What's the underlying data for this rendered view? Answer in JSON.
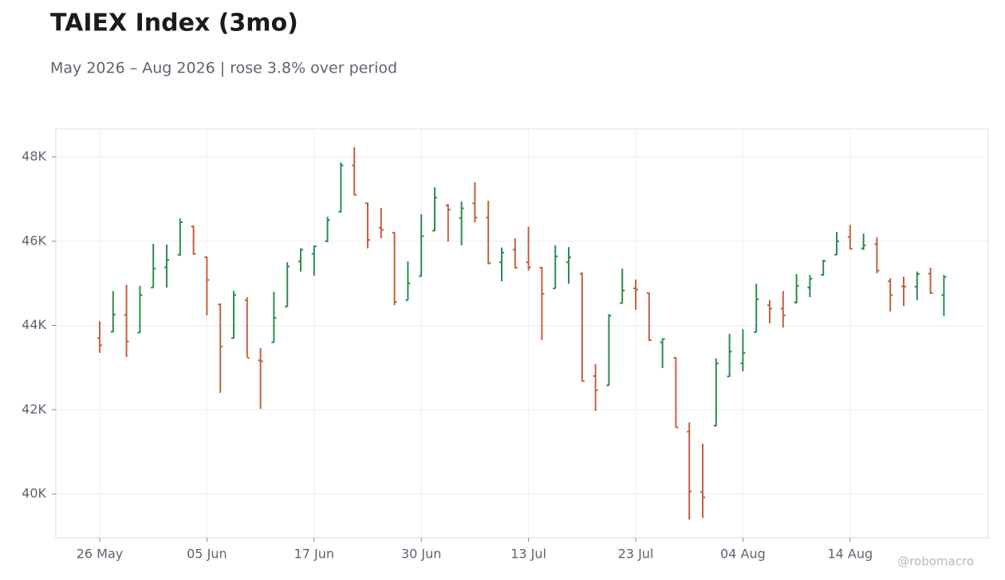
{
  "chart_data": {
    "type": "ohlc",
    "title": "TAIEX Index (3mo)",
    "subtitle": "May 2026 – Aug 2026 | rose 3.8% over period",
    "credit": "@robomacro",
    "up_color": "#2e8a50",
    "down_color": "#c4603f",
    "grid": true,
    "ylim": [
      38960,
      48662
    ],
    "yticks": [
      {
        "value": 40000,
        "label": "40K"
      },
      {
        "value": 42000,
        "label": "42K"
      },
      {
        "value": 44000,
        "label": "44K"
      },
      {
        "value": 46000,
        "label": "46K"
      },
      {
        "value": 48000,
        "label": "48K"
      }
    ],
    "categories": [
      "26 May",
      null,
      null,
      null,
      null,
      null,
      null,
      null,
      "05 Jun",
      null,
      null,
      null,
      null,
      null,
      null,
      null,
      "17 Jun",
      null,
      null,
      null,
      null,
      null,
      null,
      null,
      "30 Jun",
      null,
      null,
      null,
      null,
      null,
      null,
      null,
      "13 Jul",
      null,
      null,
      null,
      null,
      null,
      null,
      null,
      "23 Jul",
      null,
      null,
      null,
      null,
      null,
      null,
      null,
      "04 Aug",
      null,
      null,
      null,
      null,
      null,
      null,
      null,
      "14 Aug",
      null,
      null,
      null,
      null,
      null,
      null,
      null
    ],
    "open": [
      43700,
      43850,
      44250,
      43830,
      44900,
      45380,
      45680,
      46350,
      45620,
      44500,
      43700,
      44600,
      43170,
      43600,
      44450,
      45520,
      45700,
      46000,
      46700,
      47800,
      46900,
      46320,
      46200,
      44600,
      45170,
      46250,
      46850,
      46550,
      46900,
      46560,
      45500,
      45800,
      45500,
      45370,
      44880,
      45500,
      45230,
      42800,
      42580,
      44530,
      44880,
      44770,
      43600,
      43230,
      41480,
      40050,
      41620,
      42790,
      43100,
      43840,
      44480,
      44400,
      44550,
      44900,
      45200,
      45680,
      46100,
      45830,
      45930,
      45050,
      44930,
      44920,
      45230,
      44720
    ],
    "high": [
      44100,
      44820,
      44970,
      44940,
      45940,
      45920,
      46540,
      46370,
      45640,
      44520,
      44820,
      44670,
      43460,
      44800,
      45500,
      45830,
      45900,
      46580,
      47870,
      48230,
      46920,
      46790,
      46220,
      45520,
      46640,
      47280,
      46880,
      46940,
      47400,
      46960,
      45850,
      46070,
      46340,
      45390,
      45900,
      45860,
      45260,
      43080,
      44270,
      45350,
      45090,
      44780,
      43690,
      43250,
      41700,
      41190,
      43220,
      43800,
      43910,
      44990,
      44600,
      44820,
      45220,
      45200,
      45560,
      46220,
      46390,
      46180,
      46090,
      45120,
      45160,
      45280,
      45370,
      45200
    ],
    "low": [
      43350,
      43840,
      43250,
      43820,
      44900,
      44900,
      45650,
      45680,
      44240,
      42400,
      43690,
      43250,
      42020,
      43590,
      44440,
      45280,
      45180,
      45980,
      46680,
      47090,
      45830,
      46070,
      44480,
      44600,
      45160,
      46240,
      45990,
      45900,
      46450,
      45450,
      45050,
      45350,
      45300,
      43650,
      44880,
      44990,
      42670,
      41970,
      42570,
      44520,
      44370,
      43630,
      42990,
      41570,
      39390,
      39430,
      41610,
      42780,
      42910,
      43840,
      44050,
      43950,
      44520,
      44670,
      45180,
      45670,
      45810,
      45790,
      45240,
      44330,
      44460,
      44600,
      44750,
      44220
    ],
    "close": [
      43530,
      44260,
      43620,
      44720,
      45350,
      45560,
      46450,
      45700,
      45080,
      43500,
      44720,
      43230,
      43150,
      44180,
      45400,
      45800,
      45880,
      46500,
      47800,
      47100,
      46030,
      46270,
      44560,
      45000,
      46120,
      47030,
      46750,
      46780,
      46560,
      45480,
      45730,
      45370,
      45380,
      44750,
      45640,
      45620,
      42680,
      42460,
      44230,
      44830,
      44850,
      43650,
      43680,
      41580,
      40060,
      39920,
      43100,
      43380,
      43350,
      44620,
      44400,
      44240,
      44940,
      45110,
      45530,
      46000,
      45820,
      45900,
      45300,
      44720,
      44920,
      45220,
      44770,
      45150
    ]
  }
}
